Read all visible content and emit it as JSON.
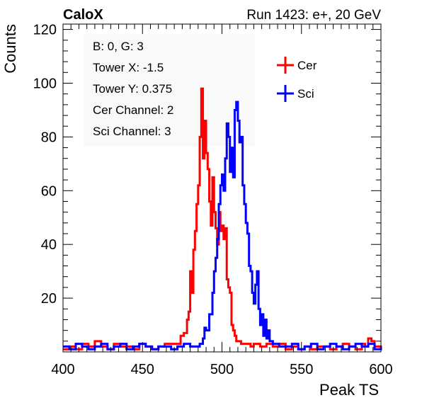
{
  "header": {
    "brand": "CaloX",
    "run_info": "Run 1423: e+, 20 GeV"
  },
  "info_box": {
    "lines": [
      "B: 0, G: 3",
      "Tower X: -1.5",
      "Tower Y: 0.375",
      "Cer Channel: 2",
      "Sci Channel: 3"
    ]
  },
  "chart_data": {
    "type": "line",
    "title": "",
    "xlabel": "Peak TS",
    "ylabel": "Counts",
    "xlim": [
      400,
      600
    ],
    "ylim": [
      0,
      122
    ],
    "x_ticks": [
      400,
      450,
      500,
      550,
      600
    ],
    "y_ticks": [
      20,
      40,
      60,
      80,
      100,
      120
    ],
    "grid": false,
    "legend_placement": "top-right",
    "step_width": 1,
    "series": [
      {
        "name": "Cer",
        "color": "#ff0000",
        "points": [
          [
            400,
            1
          ],
          [
            404,
            2
          ],
          [
            408,
            1
          ],
          [
            412,
            3
          ],
          [
            416,
            2
          ],
          [
            420,
            4
          ],
          [
            424,
            2
          ],
          [
            428,
            1
          ],
          [
            432,
            3
          ],
          [
            436,
            2
          ],
          [
            440,
            2
          ],
          [
            444,
            1
          ],
          [
            448,
            3
          ],
          [
            452,
            2
          ],
          [
            456,
            1
          ],
          [
            460,
            2
          ],
          [
            464,
            3
          ],
          [
            468,
            3
          ],
          [
            472,
            3
          ],
          [
            474,
            6
          ],
          [
            476,
            7
          ],
          [
            478,
            12
          ],
          [
            479,
            15
          ],
          [
            480,
            30
          ],
          [
            481,
            22
          ],
          [
            482,
            38
          ],
          [
            483,
            45
          ],
          [
            484,
            55
          ],
          [
            485,
            62
          ],
          [
            486,
            80
          ],
          [
            487,
            98
          ],
          [
            488,
            72
          ],
          [
            489,
            86
          ],
          [
            490,
            74
          ],
          [
            491,
            68
          ],
          [
            492,
            56
          ],
          [
            493,
            47
          ],
          [
            494,
            65
          ],
          [
            495,
            52
          ],
          [
            496,
            46
          ],
          [
            497,
            40
          ],
          [
            498,
            52
          ],
          [
            499,
            45
          ],
          [
            500,
            47
          ],
          [
            501,
            42
          ],
          [
            502,
            46
          ],
          [
            503,
            27
          ],
          [
            504,
            24
          ],
          [
            505,
            22
          ],
          [
            506,
            10
          ],
          [
            507,
            8
          ],
          [
            508,
            6
          ],
          [
            509,
            4
          ],
          [
            512,
            3
          ],
          [
            515,
            3
          ],
          [
            518,
            2
          ],
          [
            520,
            3
          ],
          [
            524,
            2
          ],
          [
            528,
            3
          ],
          [
            532,
            2
          ],
          [
            536,
            3
          ],
          [
            540,
            1
          ],
          [
            544,
            2
          ],
          [
            548,
            1
          ],
          [
            552,
            2
          ],
          [
            556,
            1
          ],
          [
            560,
            2
          ],
          [
            564,
            2
          ],
          [
            568,
            1
          ],
          [
            572,
            2
          ],
          [
            576,
            3
          ],
          [
            580,
            2
          ],
          [
            584,
            1
          ],
          [
            588,
            3
          ],
          [
            590,
            2
          ],
          [
            592,
            5
          ],
          [
            594,
            4
          ],
          [
            596,
            2
          ],
          [
            600,
            1
          ]
        ]
      },
      {
        "name": "Sci",
        "color": "#0000ff",
        "points": [
          [
            400,
            2
          ],
          [
            404,
            1
          ],
          [
            408,
            3
          ],
          [
            412,
            2
          ],
          [
            416,
            1
          ],
          [
            420,
            2
          ],
          [
            424,
            3
          ],
          [
            428,
            1
          ],
          [
            432,
            2
          ],
          [
            436,
            3
          ],
          [
            440,
            1
          ],
          [
            444,
            2
          ],
          [
            448,
            3
          ],
          [
            452,
            2
          ],
          [
            456,
            1
          ],
          [
            460,
            2
          ],
          [
            464,
            2
          ],
          [
            468,
            1
          ],
          [
            472,
            2
          ],
          [
            476,
            3
          ],
          [
            480,
            2
          ],
          [
            484,
            2
          ],
          [
            486,
            3
          ],
          [
            488,
            5
          ],
          [
            489,
            9
          ],
          [
            490,
            8
          ],
          [
            492,
            14
          ],
          [
            494,
            22
          ],
          [
            495,
            30
          ],
          [
            496,
            35
          ],
          [
            497,
            42
          ],
          [
            498,
            55
          ],
          [
            499,
            62
          ],
          [
            500,
            66
          ],
          [
            501,
            60
          ],
          [
            502,
            72
          ],
          [
            503,
            85
          ],
          [
            504,
            80
          ],
          [
            505,
            67
          ],
          [
            506,
            76
          ],
          [
            507,
            65
          ],
          [
            508,
            90
          ],
          [
            509,
            93
          ],
          [
            510,
            86
          ],
          [
            511,
            78
          ],
          [
            512,
            80
          ],
          [
            513,
            62
          ],
          [
            514,
            55
          ],
          [
            515,
            48
          ],
          [
            516,
            44
          ],
          [
            517,
            32
          ],
          [
            518,
            30
          ],
          [
            519,
            22
          ],
          [
            520,
            18
          ],
          [
            521,
            25
          ],
          [
            522,
            30
          ],
          [
            523,
            16
          ],
          [
            524,
            10
          ],
          [
            525,
            14
          ],
          [
            526,
            6
          ],
          [
            527,
            12
          ],
          [
            528,
            5
          ],
          [
            529,
            8
          ],
          [
            530,
            4
          ],
          [
            532,
            3
          ],
          [
            534,
            3
          ],
          [
            536,
            2
          ],
          [
            540,
            2
          ],
          [
            544,
            3
          ],
          [
            548,
            1
          ],
          [
            552,
            2
          ],
          [
            556,
            3
          ],
          [
            560,
            1
          ],
          [
            564,
            2
          ],
          [
            568,
            3
          ],
          [
            572,
            2
          ],
          [
            576,
            1
          ],
          [
            580,
            2
          ],
          [
            584,
            3
          ],
          [
            588,
            2
          ],
          [
            592,
            3
          ],
          [
            596,
            1
          ],
          [
            600,
            2
          ]
        ]
      }
    ]
  }
}
